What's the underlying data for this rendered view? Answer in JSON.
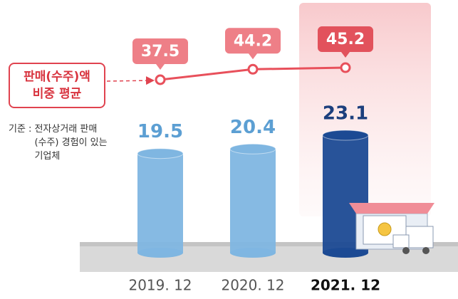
{
  "chart_data": {
    "type": "bar-line",
    "categories": [
      "2019. 12",
      "2020. 12",
      "2021. 12"
    ],
    "series": [
      {
        "type": "bar",
        "colors": [
          "#7fb6e1",
          "#7fb6e1",
          "#1c4a93"
        ],
        "values": [
          19.5,
          20.4,
          23.1
        ]
      },
      {
        "type": "line",
        "name": "판매(수주)액 비중 평균",
        "color": "#e8505b",
        "values": [
          37.5,
          44.2,
          45.2
        ]
      }
    ],
    "highlight_category": 2,
    "note": {
      "label": "기준 :",
      "text": "전자상거래 판매(수주) 경험이 있는 기업체"
    }
  }
}
